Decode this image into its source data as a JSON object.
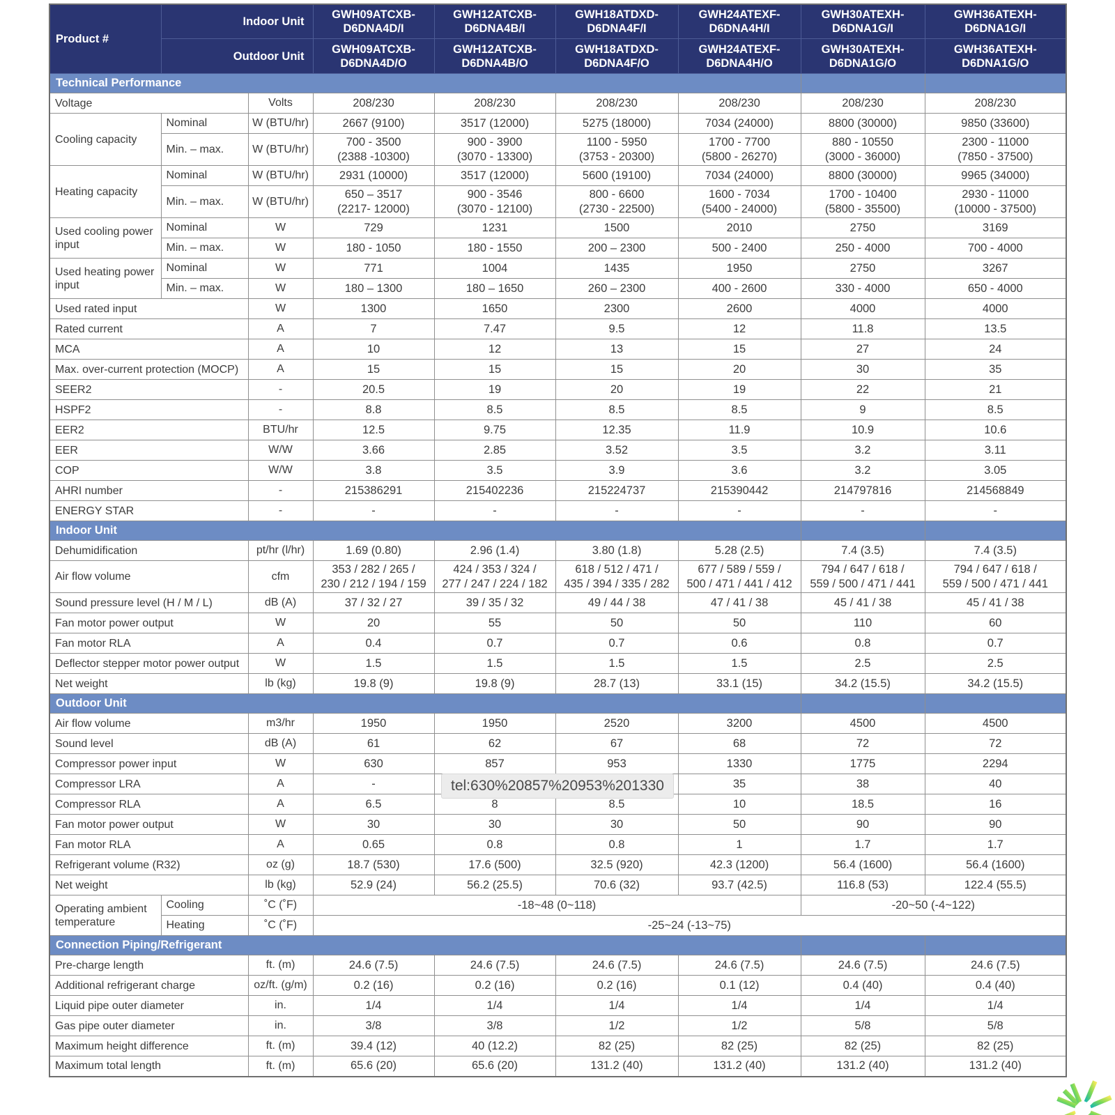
{
  "header": {
    "product_label": "Product #",
    "indoor_label": "Indoor Unit",
    "outdoor_label": "Outdoor Unit",
    "columns": [
      {
        "indoor": "GWH09ATCXB-\nD6DNA4D/I",
        "outdoor": "GWH09ATCXB-\nD6DNA4D/O"
      },
      {
        "indoor": "GWH12ATCXB-\nD6DNA4B/I",
        "outdoor": "GWH12ATCXB-\nD6DNA4B/O"
      },
      {
        "indoor": "GWH18ATDXD-\nD6DNA4F/I",
        "outdoor": "GWH18ATDXD-\nD6DNA4F/O"
      },
      {
        "indoor": "GWH24ATEXF-\nD6DNA4H/I",
        "outdoor": "GWH24ATEXF-\nD6DNA4H/O"
      },
      {
        "indoor": "GWH30ATEXH-\nD6DNA1G/I",
        "outdoor": "GWH30ATEXH-\nD6DNA1G/O"
      },
      {
        "indoor": "GWH36ATEXH-\nD6DNA1G/I",
        "outdoor": "GWH36ATEXH-\nD6DNA1G/O"
      }
    ]
  },
  "sections": [
    {
      "title": "Technical Performance",
      "rows": [
        {
          "label": "Voltage",
          "unit": "Volts",
          "values": [
            "208/230",
            "208/230",
            "208/230",
            "208/230",
            "208/230",
            "208/230"
          ]
        },
        {
          "group": "Cooling capacity",
          "groupspan": 2,
          "sublabel": "Nominal",
          "unit": "W (BTU/hr)",
          "values": [
            "2667 (9100)",
            "3517 (12000)",
            "5275 (18000)",
            "7034 (24000)",
            "8800 (30000)",
            "9850 (33600)"
          ]
        },
        {
          "sublabel": "Min. – max.",
          "unit": "W (BTU/hr)",
          "tall": true,
          "values": [
            "700 - 3500\n(2388 -10300)",
            "900 - 3900\n(3070 - 13300)",
            "1100 - 5950\n(3753 - 20300)",
            "1700 - 7700\n(5800 - 26270)",
            "880 - 10550\n(3000 - 36000)",
            "2300 - 11000\n(7850 - 37500)"
          ]
        },
        {
          "group": "Heating capacity",
          "groupspan": 2,
          "sublabel": "Nominal",
          "unit": "W (BTU/hr)",
          "values": [
            "2931 (10000)",
            "3517 (12000)",
            "5600 (19100)",
            "7034 (24000)",
            "8800 (30000)",
            "9965 (34000)"
          ]
        },
        {
          "sublabel": "Min. – max.",
          "unit": "W (BTU/hr)",
          "tall": true,
          "values": [
            "650 – 3517\n(2217- 12000)",
            "900 - 3546\n(3070 - 12100)",
            "800 - 6600\n(2730 - 22500)",
            "1600 - 7034\n(5400 - 24000)",
            "1700 - 10400\n(5800 - 35500)",
            "2930 - 11000\n(10000 - 37500)"
          ]
        },
        {
          "group": "Used cooling power input",
          "groupspan": 2,
          "sublabel": "Nominal",
          "unit": "W",
          "values": [
            "729",
            "1231",
            "1500",
            "2010",
            "2750",
            "3169"
          ]
        },
        {
          "sublabel": "Min. – max.",
          "unit": "W",
          "values": [
            "180 - 1050",
            "180 - 1550",
            "200 – 2300",
            "500 - 2400",
            "250 - 4000",
            "700 - 4000"
          ]
        },
        {
          "group": "Used heating power input",
          "groupspan": 2,
          "sublabel": "Nominal",
          "unit": "W",
          "values": [
            "771",
            "1004",
            "1435",
            "1950",
            "2750",
            "3267"
          ]
        },
        {
          "sublabel": "Min. – max.",
          "unit": "W",
          "values": [
            "180 – 1300",
            "180 – 1650",
            "260 – 2300",
            "400 - 2600",
            "330 - 4000",
            "650 - 4000"
          ]
        },
        {
          "label": "Used rated input",
          "unit": "W",
          "values": [
            "1300",
            "1650",
            "2300",
            "2600",
            "4000",
            "4000"
          ]
        },
        {
          "label": "Rated current",
          "unit": "A",
          "values": [
            "7",
            "7.47",
            "9.5",
            "12",
            "11.8",
            "13.5"
          ]
        },
        {
          "label": "MCA",
          "unit": "A",
          "values": [
            "10",
            "12",
            "13",
            "15",
            "27",
            "24"
          ]
        },
        {
          "label": "Max. over-current protection (MOCP)",
          "unit": "A",
          "values": [
            "15",
            "15",
            "15",
            "20",
            "30",
            "35"
          ]
        },
        {
          "label": "SEER2",
          "unit": "-",
          "values": [
            "20.5",
            "19",
            "20",
            "19",
            "22",
            "21"
          ]
        },
        {
          "label": "HSPF2",
          "unit": "-",
          "values": [
            "8.8",
            "8.5",
            "8.5",
            "8.5",
            "9",
            "8.5"
          ]
        },
        {
          "label": "EER2",
          "unit": "BTU/hr",
          "values": [
            "12.5",
            "9.75",
            "12.35",
            "11.9",
            "10.9",
            "10.6"
          ]
        },
        {
          "label": "EER",
          "unit": "W/W",
          "values": [
            "3.66",
            "2.85",
            "3.52",
            "3.5",
            "3.2",
            "3.11"
          ]
        },
        {
          "label": "COP",
          "unit": "W/W",
          "values": [
            "3.8",
            "3.5",
            "3.9",
            "3.6",
            "3.2",
            "3.05"
          ]
        },
        {
          "label": "AHRI number",
          "unit": "-",
          "values": [
            "215386291",
            "215402236",
            "215224737",
            "215390442",
            "214797816",
            "214568849"
          ]
        },
        {
          "label": "ENERGY STAR",
          "unit": "-",
          "values": [
            "-",
            "-",
            "-",
            "-",
            "-",
            "-"
          ]
        }
      ]
    },
    {
      "title": "Indoor Unit",
      "rows": [
        {
          "label": "Dehumidification",
          "unit": "pt/hr (l/hr)",
          "values": [
            "1.69 (0.80)",
            "2.96 (1.4)",
            "3.80 (1.8)",
            "5.28 (2.5)",
            "7.4 (3.5)",
            "7.4 (3.5)"
          ]
        },
        {
          "label": "Air flow volume",
          "unit": "cfm",
          "tall": true,
          "values": [
            "353 / 282 / 265 /\n230 / 212 / 194 / 159",
            "424 / 353 / 324 /\n277 / 247 / 224 / 182",
            "618 / 512 / 471 /\n435 / 394 / 335 / 282",
            "677 / 589 / 559 /\n500 / 471 / 441 / 412",
            "794 / 647 / 618 /\n559 / 500 / 471 / 441",
            "794 / 647 / 618 /\n559 / 500 / 471 / 441"
          ]
        },
        {
          "label": "Sound pressure level (H / M / L)",
          "unit": "dB (A)",
          "values": [
            "37 / 32 / 27",
            "39 / 35 / 32",
            "49 / 44 / 38",
            "47 / 41 / 38",
            "45 / 41 / 38",
            "45 / 41 / 38"
          ]
        },
        {
          "label": "Fan motor power output",
          "unit": "W",
          "values": [
            "20",
            "55",
            "50",
            "50",
            "110",
            "60"
          ]
        },
        {
          "label": "Fan motor RLA",
          "unit": "A",
          "values": [
            "0.4",
            "0.7",
            "0.7",
            "0.6",
            "0.8",
            "0.7"
          ]
        },
        {
          "label": "Deflector stepper motor power output",
          "unit": "W",
          "values": [
            "1.5",
            "1.5",
            "1.5",
            "1.5",
            "2.5",
            "2.5"
          ]
        },
        {
          "label": "Net weight",
          "unit": "lb (kg)",
          "values": [
            "19.8 (9)",
            "19.8 (9)",
            "28.7 (13)",
            "33.1 (15)",
            "34.2 (15.5)",
            "34.2 (15.5)"
          ]
        }
      ]
    },
    {
      "title": "Outdoor Unit",
      "rows": [
        {
          "label": "Air flow volume",
          "unit": "m3/hr",
          "values": [
            "1950",
            "1950",
            "2520",
            "3200",
            "4500",
            "4500"
          ]
        },
        {
          "label": "Sound level",
          "unit": "dB (A)",
          "values": [
            "61",
            "62",
            "67",
            "68",
            "72",
            "72"
          ]
        },
        {
          "label": "Compressor power input",
          "unit": "W",
          "values": [
            "630",
            "857",
            "953",
            "1330",
            "1775",
            "2294"
          ]
        },
        {
          "label": "Compressor LRA",
          "unit": "A",
          "values": [
            "-",
            "-",
            "-",
            "35",
            "38",
            "40"
          ]
        },
        {
          "label": "Compressor RLA",
          "unit": "A",
          "values": [
            "6.5",
            "8",
            "8.5",
            "10",
            "18.5",
            "16"
          ]
        },
        {
          "label": "Fan motor power output",
          "unit": "W",
          "values": [
            "30",
            "30",
            "30",
            "50",
            "90",
            "90"
          ]
        },
        {
          "label": "Fan motor RLA",
          "unit": "A",
          "values": [
            "0.65",
            "0.8",
            "0.8",
            "1",
            "1.7",
            "1.7"
          ]
        },
        {
          "label": "Refrigerant volume (R32)",
          "unit": "oz (g)",
          "values": [
            "18.7 (530)",
            "17.6 (500)",
            "32.5 (920)",
            "42.3 (1200)",
            "56.4 (1600)",
            "56.4 (1600)"
          ]
        },
        {
          "label": "Net weight",
          "unit": "lb (kg)",
          "values": [
            "52.9 (24)",
            "56.2 (25.5)",
            "70.6 (32)",
            "93.7 (42.5)",
            "116.8 (53)",
            "122.4 (55.5)"
          ]
        },
        {
          "group": "Operating ambient temperature",
          "groupspan": 2,
          "sublabel": "Cooling",
          "unit": "˚C (˚F)",
          "values": [
            {
              "t": "-18~48 (0~118)",
              "s": 4
            },
            {
              "t": "-20~50 (-4~122)",
              "s": 2
            }
          ]
        },
        {
          "sublabel": "Heating",
          "unit": "˚C (˚F)",
          "values": [
            {
              "t": "-25~24 (-13~75)",
              "s": 6
            }
          ]
        }
      ]
    },
    {
      "title": "Connection Piping/Refrigerant",
      "rows": [
        {
          "label": "Pre-charge length",
          "unit": "ft. (m)",
          "values": [
            "24.6 (7.5)",
            "24.6 (7.5)",
            "24.6 (7.5)",
            "24.6 (7.5)",
            "24.6 (7.5)",
            "24.6 (7.5)"
          ]
        },
        {
          "label": "Additional refrigerant charge",
          "unit": "oz/ft. (g/m)",
          "values": [
            "0.2 (16)",
            "0.2 (16)",
            "0.2 (16)",
            "0.1 (12)",
            "0.4 (40)",
            "0.4 (40)"
          ]
        },
        {
          "label": "Liquid pipe outer diameter",
          "unit": "in.",
          "values": [
            "1/4",
            "1/4",
            "1/4",
            "1/4",
            "1/4",
            "1/4"
          ]
        },
        {
          "label": "Gas pipe outer diameter",
          "unit": "in.",
          "values": [
            "3/8",
            "3/8",
            "1/2",
            "1/2",
            "5/8",
            "5/8"
          ]
        },
        {
          "label": "Maximum height difference",
          "unit": "ft. (m)",
          "values": [
            "39.4 (12)",
            "40 (12.2)",
            "82 (25)",
            "82 (25)",
            "82 (25)",
            "82 (25)"
          ]
        },
        {
          "label": "Maximum total length",
          "unit": "ft. (m)",
          "values": [
            "65.6 (20)",
            "65.6 (20)",
            "131.2 (40)",
            "131.2 (40)",
            "131.2 (40)",
            "131.2 (40)"
          ]
        }
      ]
    }
  ],
  "tooltip": {
    "text": "tel:630%20857%20953%201330"
  },
  "logo": {
    "name": "snowflake-logo",
    "colors": [
      "#1db9aa",
      "#7ed957",
      "#f2ea5a"
    ]
  },
  "colors": {
    "header_navy": "#2a3572",
    "section_band_blue": "#6d8cc4",
    "grid_border": "#8f8f8f",
    "text": "#3c3c3c",
    "tooltip_bg": "#ececec"
  }
}
